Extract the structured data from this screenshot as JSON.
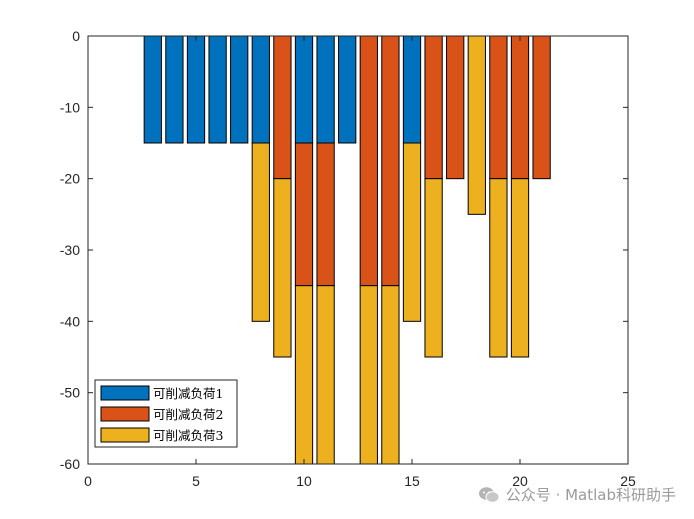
{
  "chart_data": {
    "type": "bar",
    "stacked": true,
    "xlim": [
      0,
      25
    ],
    "ylim": [
      -60,
      0
    ],
    "x_ticks": [
      0,
      5,
      10,
      15,
      20,
      25
    ],
    "y_ticks": [
      0,
      -10,
      -20,
      -30,
      -40,
      -50,
      -60
    ],
    "x": [
      3,
      4,
      5,
      6,
      7,
      8,
      9,
      10,
      11,
      12,
      13,
      14,
      15,
      16,
      17,
      18,
      19,
      20,
      21
    ],
    "series": [
      {
        "name": "可削减负荷1",
        "color": "#0072BD",
        "values": [
          -15,
          -15,
          -15,
          -15,
          -15,
          -15,
          0,
          -15,
          -15,
          -15,
          0,
          0,
          -15,
          0,
          0,
          0,
          0,
          0,
          0
        ]
      },
      {
        "name": "可削减负荷2",
        "color": "#D95319",
        "values": [
          0,
          0,
          0,
          0,
          0,
          0,
          -20,
          -20,
          -20,
          0,
          -35,
          -35,
          0,
          -20,
          -20,
          0,
          -20,
          -20,
          -20
        ]
      },
      {
        "name": "可削减负荷3",
        "color": "#EDB120",
        "values": [
          0,
          0,
          0,
          0,
          0,
          -25,
          -25,
          -25,
          -25,
          0,
          -25,
          -25,
          -25,
          -25,
          0,
          -25,
          -25,
          -25,
          0
        ]
      }
    ],
    "legend_position": "bottom-left",
    "title": "",
    "xlabel": "",
    "ylabel": ""
  },
  "watermark": {
    "text": "公众号 · Matlab科研助手",
    "icon": "wechat-icon"
  }
}
